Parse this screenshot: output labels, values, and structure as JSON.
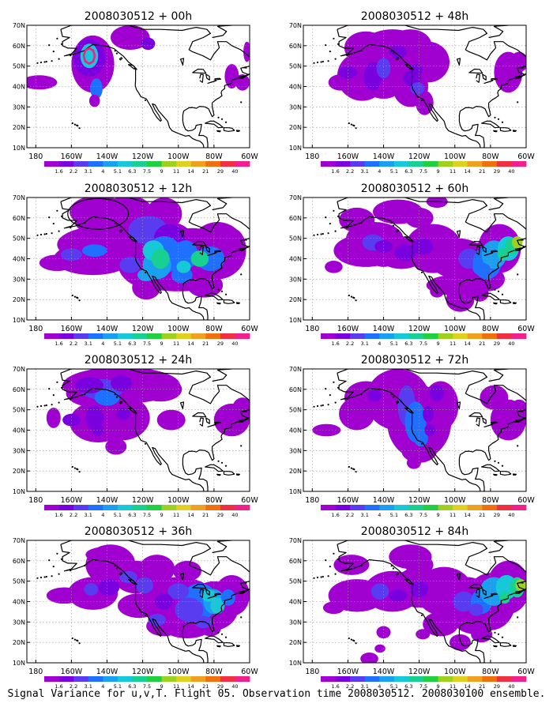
{
  "figure": {
    "caption": "Signal Variance for u,v,T. Flight 05. Observation time 2008030512. 2008030100 ensemble.",
    "panels": [
      {
        "title": "2008030512 + 00h",
        "lead_hours": 0
      },
      {
        "title": "2008030512 + 48h",
        "lead_hours": 48
      },
      {
        "title": "2008030512 + 12h",
        "lead_hours": 12
      },
      {
        "title": "2008030512 + 60h",
        "lead_hours": 60
      },
      {
        "title": "2008030512 + 24h",
        "lead_hours": 24
      },
      {
        "title": "2008030512 + 72h",
        "lead_hours": 72
      },
      {
        "title": "2008030512 + 36h",
        "lead_hours": 36
      },
      {
        "title": "2008030512 + 84h",
        "lead_hours": 84
      }
    ],
    "lat_labels": [
      "10N",
      "20N",
      "30N",
      "40N",
      "50N",
      "60N",
      "70N"
    ],
    "lon_labels": [
      "180",
      "160W",
      "140W",
      "120W",
      "100W",
      "80W",
      "60W"
    ],
    "colorbar": {
      "labels": [
        "1.6",
        "2.2",
        "3.1",
        "4",
        "5.1",
        "6.3",
        "7.5",
        "9",
        "11",
        "14",
        "21",
        "29",
        "40"
      ],
      "colors": [
        "#a000d0",
        "#7a00e0",
        "#5a3cf0",
        "#2070ff",
        "#1aa0f0",
        "#16c8d8",
        "#18d090",
        "#20d040",
        "#9ed020",
        "#e0d020",
        "#f0a020",
        "#f07010",
        "#f03040",
        "#f0208c"
      ]
    },
    "map_style": {
      "coast_color": "#000000",
      "grid_color": "#999999",
      "fill_color": "#a000d0"
    }
  }
}
